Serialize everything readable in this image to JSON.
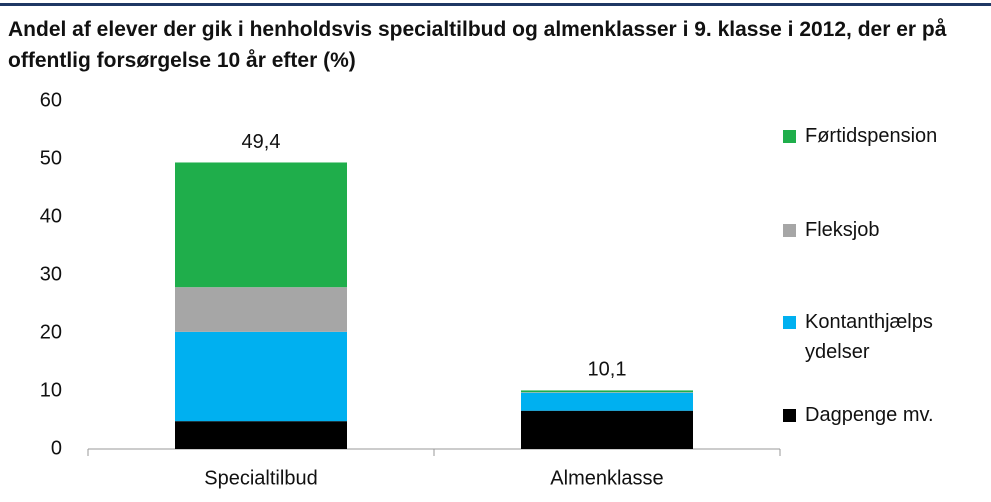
{
  "chart_data": {
    "type": "stacked_bar",
    "title": "Andel af elever der gik i henholdsvis specialtilbud og almenklasser i 9. klasse i 2012, der er på offentlig forsørgelse 10 år efter (%)",
    "categories": [
      "Specialtilbud",
      "Almenklasse"
    ],
    "series": [
      {
        "name": "Dagpenge mv.",
        "color": "#000000",
        "values": [
          4.8,
          6.6
        ]
      },
      {
        "name": "Kontanthjælps ydelser",
        "color": "#00b0f0",
        "values": [
          15.4,
          3.1
        ]
      },
      {
        "name": "Fleksjob",
        "color": "#a6a6a6",
        "values": [
          7.7,
          0.1
        ]
      },
      {
        "name": "Førtidspension",
        "color": "#1fae4b",
        "values": [
          21.5,
          0.3
        ]
      }
    ],
    "totals": [
      49.4,
      10.1
    ],
    "total_labels": [
      "49,4",
      "10,1"
    ],
    "ylim": [
      0,
      60
    ],
    "yticks": [
      0,
      10,
      20,
      30,
      40,
      50,
      60
    ],
    "grid": false
  }
}
